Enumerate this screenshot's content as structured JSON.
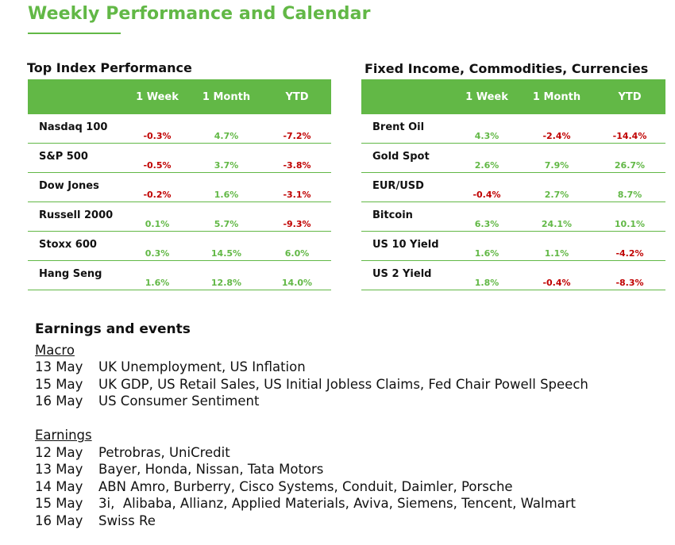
{
  "page": {
    "title": "Weekly Performance and Calendar"
  },
  "colors": {
    "accent": "#62b846",
    "negative": "#c00000",
    "positive": "#62b846"
  },
  "index_table": {
    "title": "Top Index Performance",
    "columns": [
      "",
      "1 Week",
      "1 Month",
      "YTD"
    ],
    "rows": [
      {
        "name": "Nasdaq 100",
        "week": "-0.3%",
        "month": "4.7%",
        "ytd": "-7.2%"
      },
      {
        "name": "S&P 500",
        "week": "-0.5%",
        "month": "3.7%",
        "ytd": "-3.8%"
      },
      {
        "name": "Dow Jones",
        "week": "-0.2%",
        "month": "1.6%",
        "ytd": "-3.1%"
      },
      {
        "name": "Russell 2000",
        "week": "0.1%",
        "month": "5.7%",
        "ytd": "-9.3%"
      },
      {
        "name": "Stoxx 600",
        "week": "0.3%",
        "month": "14.5%",
        "ytd": "6.0%"
      },
      {
        "name": "Hang Seng",
        "week": "1.6%",
        "month": "12.8%",
        "ytd": "14.0%"
      }
    ]
  },
  "fixed_table": {
    "title": "Fixed Income, Commodities, Currencies",
    "columns": [
      "",
      "1 Week",
      "1 Month",
      "YTD"
    ],
    "rows": [
      {
        "name": "Brent Oil",
        "week": "4.3%",
        "month": "-2.4%",
        "ytd": "-14.4%"
      },
      {
        "name": "Gold Spot",
        "week": "2.6%",
        "month": "7.9%",
        "ytd": "26.7%"
      },
      {
        "name": "EUR/USD",
        "week": "-0.4%",
        "month": "2.7%",
        "ytd": "8.7%"
      },
      {
        "name": "Bitcoin",
        "week": "6.3%",
        "month": "24.1%",
        "ytd": "10.1%"
      },
      {
        "name": "US 10 Yield",
        "week": "1.6%",
        "month": "1.1%",
        "ytd": "-4.2%"
      },
      {
        "name": "US 2 Yield",
        "week": "1.8%",
        "month": "-0.4%",
        "ytd": "-8.3%"
      }
    ]
  },
  "events": {
    "heading": "Earnings and events",
    "macro": {
      "label": "Macro",
      "items": [
        {
          "date": "13 May",
          "text": "UK Unemployment, US Inflation"
        },
        {
          "date": "15 May",
          "text": "UK GDP, US Retail Sales, US Initial Jobless Claims, Fed Chair Powell Speech"
        },
        {
          "date": "16 May",
          "text": "US Consumer Sentiment"
        }
      ]
    },
    "earnings": {
      "label": "Earnings",
      "items": [
        {
          "date": "12 May",
          "text": "Petrobras, UniCredit"
        },
        {
          "date": "13 May",
          "text": "Bayer, Honda, Nissan, Tata Motors"
        },
        {
          "date": "14 May",
          "text": "ABN Amro, Burberry, Cisco Systems, Conduit, Daimler, Porsche"
        },
        {
          "date": "15 May",
          "text": "3i,  Alibaba, Allianz, Applied Materials, Aviva, Siemens, Tencent, Walmart"
        },
        {
          "date": "16 May",
          "text": "Swiss Re"
        }
      ]
    }
  }
}
